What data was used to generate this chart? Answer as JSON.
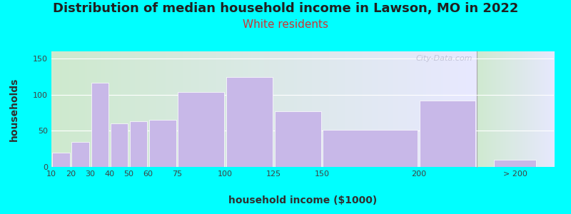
{
  "title": "Distribution of median household income in Lawson, MO in 2022",
  "subtitle": "White residents",
  "xlabel": "household income ($1000)",
  "ylabel": "households",
  "background_outer": "#00FFFF",
  "bar_color": "#c8b8e8",
  "categories": [
    "10",
    "20",
    "30",
    "40",
    "50",
    "60",
    "75",
    "100",
    "125",
    "150",
    "200",
    "> 200"
  ],
  "bar_lefts": [
    10,
    20,
    30,
    40,
    50,
    60,
    75,
    100,
    125,
    150,
    200,
    240
  ],
  "bar_widths": [
    10,
    10,
    10,
    10,
    10,
    15,
    25,
    25,
    25,
    50,
    30,
    30
  ],
  "values": [
    20,
    35,
    117,
    60,
    63,
    65,
    104,
    124,
    77,
    51,
    92,
    10
  ],
  "ylim": [
    0,
    160
  ],
  "yticks": [
    0,
    50,
    100,
    150
  ],
  "xlim_main": [
    10,
    230
  ],
  "xlim_gap_start": 230,
  "xlim_gap_end": 236,
  "xlim_end": 280,
  "xtick_positions": [
    10,
    20,
    30,
    40,
    50,
    60,
    75,
    100,
    125,
    150,
    200,
    255
  ],
  "xtick_labels": [
    "10",
    "20",
    "30",
    "40",
    "50",
    "60",
    "75",
    "100",
    "125",
    "150",
    "200",
    "> 200"
  ],
  "title_fontsize": 13,
  "subtitle_fontsize": 11,
  "axis_label_fontsize": 10,
  "tick_fontsize": 8,
  "watermark_text": "City-Data.com"
}
